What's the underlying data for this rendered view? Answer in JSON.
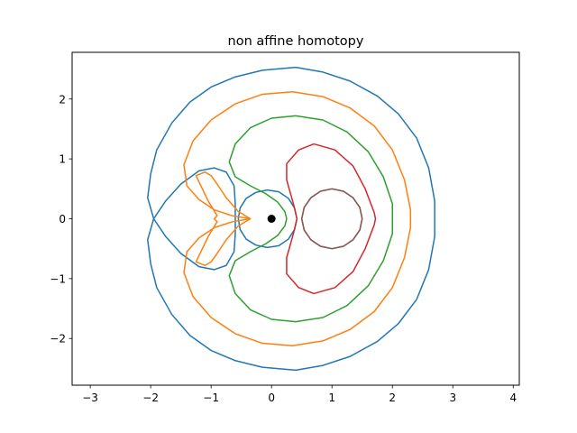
{
  "chart_data": {
    "type": "line",
    "title": "non affine homotopy",
    "xlabel": "",
    "ylabel": "",
    "xlim": [
      -3.3,
      4.1
    ],
    "ylim": [
      -2.78,
      2.78
    ],
    "x_ticks": [
      -3,
      -2,
      -1,
      0,
      1,
      2,
      3,
      4
    ],
    "y_ticks": [
      -2,
      -1,
      0,
      1,
      2
    ],
    "grid": false,
    "legend": "none",
    "point": {
      "x": 0,
      "y": 0,
      "color": "#000000"
    },
    "series": [
      {
        "color": "#1f77b4",
        "segments": [
          [
            [
              0.4,
              2.53
            ],
            [
              0.85,
              2.45
            ],
            [
              1.3,
              2.3
            ],
            [
              1.75,
              2.05
            ],
            [
              2.1,
              1.75
            ],
            [
              2.4,
              1.35
            ],
            [
              2.6,
              0.85
            ],
            [
              2.7,
              0.3
            ],
            [
              2.7,
              0.0
            ],
            [
              2.7,
              -0.3
            ],
            [
              2.6,
              -0.85
            ],
            [
              2.4,
              -1.35
            ],
            [
              2.1,
              -1.75
            ],
            [
              1.75,
              -2.05
            ],
            [
              1.3,
              -2.3
            ],
            [
              0.85,
              -2.45
            ],
            [
              0.4,
              -2.53
            ],
            [
              -0.15,
              -2.48
            ],
            [
              -0.6,
              -2.37
            ],
            [
              -1.0,
              -2.2
            ],
            [
              -1.35,
              -1.95
            ],
            [
              -1.65,
              -1.6
            ],
            [
              -1.9,
              -1.15
            ],
            [
              -2.0,
              -0.75
            ],
            [
              -2.05,
              -0.35
            ],
            [
              -1.95,
              0.0
            ],
            [
              -2.05,
              0.35
            ],
            [
              -2.0,
              0.75
            ],
            [
              -1.9,
              1.15
            ],
            [
              -1.65,
              1.6
            ],
            [
              -1.35,
              1.95
            ],
            [
              -1.0,
              2.2
            ],
            [
              -0.6,
              2.37
            ],
            [
              -0.15,
              2.48
            ],
            [
              0.4,
              2.53
            ]
          ],
          [
            [
              -1.95,
              0.0
            ],
            [
              -1.75,
              0.3
            ],
            [
              -1.5,
              0.58
            ],
            [
              -1.2,
              0.8
            ],
            [
              -0.95,
              0.85
            ],
            [
              -0.75,
              0.78
            ],
            [
              -0.62,
              0.55
            ],
            [
              -0.6,
              0.25
            ],
            [
              -0.6,
              0.0
            ],
            [
              -0.6,
              -0.25
            ],
            [
              -0.62,
              -0.55
            ],
            [
              -0.75,
              -0.78
            ],
            [
              -0.95,
              -0.85
            ],
            [
              -1.2,
              -0.8
            ],
            [
              -1.5,
              -0.58
            ],
            [
              -1.75,
              -0.3
            ],
            [
              -1.95,
              0.0
            ]
          ],
          [
            [
              -0.55,
              0.0
            ],
            [
              -0.52,
              0.18
            ],
            [
              -0.42,
              0.34
            ],
            [
              -0.26,
              0.44
            ],
            [
              -0.07,
              0.48
            ],
            [
              0.12,
              0.45
            ],
            [
              0.28,
              0.34
            ],
            [
              0.38,
              0.18
            ],
            [
              0.42,
              0.0
            ],
            [
              0.38,
              -0.18
            ],
            [
              0.28,
              -0.34
            ],
            [
              0.12,
              -0.45
            ],
            [
              -0.07,
              -0.48
            ],
            [
              -0.26,
              -0.44
            ],
            [
              -0.42,
              -0.34
            ],
            [
              -0.52,
              -0.18
            ],
            [
              -0.55,
              0.0
            ]
          ]
        ]
      },
      {
        "color": "#ff7f0e",
        "segments": [
          [
            [
              0.35,
              2.12
            ],
            [
              0.85,
              2.04
            ],
            [
              1.3,
              1.85
            ],
            [
              1.7,
              1.55
            ],
            [
              2.0,
              1.15
            ],
            [
              2.2,
              0.65
            ],
            [
              2.3,
              0.15
            ],
            [
              2.3,
              0.0
            ],
            [
              2.3,
              -0.15
            ],
            [
              2.2,
              -0.65
            ],
            [
              2.0,
              -1.15
            ],
            [
              1.7,
              -1.55
            ],
            [
              1.3,
              -1.85
            ],
            [
              0.85,
              -2.04
            ],
            [
              0.35,
              -2.12
            ],
            [
              -0.15,
              -2.08
            ],
            [
              -0.6,
              -1.92
            ],
            [
              -1.0,
              -1.65
            ],
            [
              -1.3,
              -1.3
            ],
            [
              -1.45,
              -0.9
            ],
            [
              -1.4,
              -0.55
            ],
            [
              -1.2,
              -0.32
            ],
            [
              -0.95,
              -0.15
            ],
            [
              -0.65,
              -0.05
            ],
            [
              -0.35,
              0.0
            ],
            [
              -0.65,
              0.05
            ],
            [
              -0.95,
              0.15
            ],
            [
              -1.2,
              0.32
            ],
            [
              -1.4,
              0.55
            ],
            [
              -1.45,
              0.9
            ],
            [
              -1.3,
              1.3
            ],
            [
              -1.0,
              1.65
            ],
            [
              -0.6,
              1.92
            ],
            [
              -0.15,
              2.08
            ],
            [
              0.35,
              2.12
            ]
          ],
          [
            [
              -0.35,
              0.0
            ],
            [
              -0.55,
              -0.12
            ],
            [
              -0.75,
              -0.35
            ],
            [
              -0.9,
              -0.58
            ],
            [
              -1.0,
              -0.72
            ],
            [
              -1.1,
              -0.78
            ],
            [
              -1.25,
              -0.72
            ],
            [
              -1.05,
              -0.3
            ],
            [
              -0.9,
              -0.05
            ],
            [
              -0.95,
              0.0
            ],
            [
              -0.9,
              0.05
            ],
            [
              -1.05,
              0.3
            ],
            [
              -1.25,
              0.72
            ],
            [
              -1.1,
              0.78
            ],
            [
              -1.0,
              0.72
            ],
            [
              -0.9,
              0.58
            ],
            [
              -0.75,
              0.35
            ],
            [
              -0.55,
              0.12
            ],
            [
              -0.35,
              0.0
            ]
          ]
        ]
      },
      {
        "color": "#2ca02c",
        "segments": [
          [
            [
              0.4,
              1.72
            ],
            [
              0.85,
              1.65
            ],
            [
              1.25,
              1.45
            ],
            [
              1.6,
              1.12
            ],
            [
              1.85,
              0.7
            ],
            [
              2.0,
              0.25
            ],
            [
              2.0,
              0.0
            ],
            [
              2.0,
              -0.25
            ],
            [
              1.85,
              -0.7
            ],
            [
              1.6,
              -1.12
            ],
            [
              1.25,
              -1.45
            ],
            [
              0.85,
              -1.65
            ],
            [
              0.4,
              -1.72
            ],
            [
              0.0,
              -1.68
            ],
            [
              -0.35,
              -1.52
            ],
            [
              -0.6,
              -1.25
            ],
            [
              -0.7,
              -0.95
            ],
            [
              -0.6,
              -0.7
            ],
            [
              -0.35,
              -0.55
            ],
            [
              -0.1,
              -0.42
            ],
            [
              0.1,
              -0.28
            ],
            [
              0.22,
              -0.12
            ],
            [
              0.25,
              0.0
            ],
            [
              0.22,
              0.12
            ],
            [
              0.1,
              0.28
            ],
            [
              -0.1,
              0.42
            ],
            [
              -0.35,
              0.55
            ],
            [
              -0.6,
              0.7
            ],
            [
              -0.7,
              0.95
            ],
            [
              -0.6,
              1.25
            ],
            [
              -0.35,
              1.52
            ],
            [
              0.0,
              1.68
            ],
            [
              0.4,
              1.72
            ]
          ]
        ]
      },
      {
        "color": "#d62728",
        "segments": [
          [
            [
              0.7,
              1.25
            ],
            [
              1.05,
              1.15
            ],
            [
              1.35,
              0.88
            ],
            [
              1.55,
              0.5
            ],
            [
              1.7,
              0.1
            ],
            [
              1.72,
              0.0
            ],
            [
              1.7,
              -0.1
            ],
            [
              1.55,
              -0.5
            ],
            [
              1.35,
              -0.88
            ],
            [
              1.05,
              -1.15
            ],
            [
              0.7,
              -1.25
            ],
            [
              0.45,
              -1.15
            ],
            [
              0.25,
              -0.92
            ],
            [
              0.25,
              -0.65
            ],
            [
              0.32,
              -0.4
            ],
            [
              0.38,
              -0.18
            ],
            [
              0.42,
              0.0
            ],
            [
              0.38,
              0.18
            ],
            [
              0.32,
              0.4
            ],
            [
              0.25,
              0.65
            ],
            [
              0.25,
              0.92
            ],
            [
              0.45,
              1.15
            ],
            [
              0.7,
              1.25
            ]
          ]
        ]
      },
      {
        "color": "#9467bd",
        "segments": [
          [
            [
              1.5,
              0.0
            ],
            [
              1.46,
              0.19
            ],
            [
              1.35,
              0.35
            ],
            [
              1.19,
              0.46
            ],
            [
              1.0,
              0.5
            ],
            [
              0.81,
              0.46
            ],
            [
              0.65,
              0.35
            ],
            [
              0.54,
              0.19
            ],
            [
              0.5,
              0.0
            ],
            [
              0.54,
              -0.19
            ],
            [
              0.65,
              -0.35
            ],
            [
              0.81,
              -0.46
            ],
            [
              1.0,
              -0.5
            ],
            [
              1.19,
              -0.46
            ],
            [
              1.35,
              -0.35
            ],
            [
              1.46,
              -0.19
            ],
            [
              1.5,
              0.0
            ]
          ]
        ]
      },
      {
        "color": "#8c564b",
        "segments": [
          [
            [
              1.5,
              0.0
            ],
            [
              1.46,
              0.19
            ],
            [
              1.35,
              0.35
            ],
            [
              1.19,
              0.46
            ],
            [
              1.0,
              0.5
            ],
            [
              0.81,
              0.46
            ],
            [
              0.65,
              0.35
            ],
            [
              0.54,
              0.19
            ],
            [
              0.5,
              0.0
            ],
            [
              0.54,
              -0.19
            ],
            [
              0.65,
              -0.35
            ],
            [
              0.81,
              -0.46
            ],
            [
              1.0,
              -0.5
            ],
            [
              1.19,
              -0.46
            ],
            [
              1.35,
              -0.35
            ],
            [
              1.46,
              -0.19
            ],
            [
              1.5,
              0.0
            ]
          ]
        ]
      }
    ]
  }
}
